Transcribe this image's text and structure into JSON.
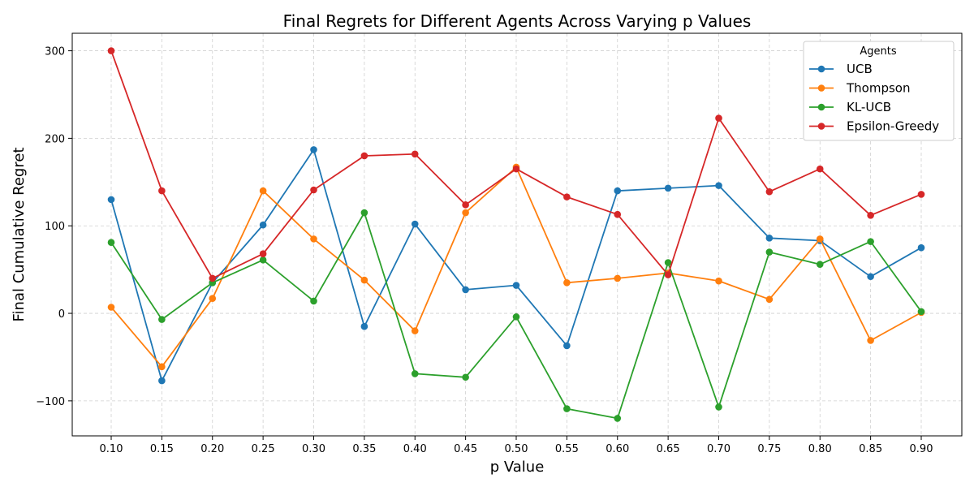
{
  "chart_data": {
    "type": "line",
    "title": "Final Regrets for Different Agents Across Varying p Values",
    "xlabel": "p Value",
    "ylabel": "Final Cumulative Regret",
    "x": [
      "0.10",
      "0.15",
      "0.20",
      "0.25",
      "0.30",
      "0.35",
      "0.40",
      "0.45",
      "0.50",
      "0.55",
      "0.60",
      "0.65",
      "0.70",
      "0.75",
      "0.80",
      "0.85",
      "0.90"
    ],
    "ylim": [
      -140,
      320
    ],
    "yticks": [
      -100,
      0,
      100,
      200,
      300
    ],
    "yticklabels": [
      "−100",
      "0",
      "100",
      "200",
      "300"
    ],
    "grid": true,
    "legend": {
      "title": "Agents",
      "position": "upper right"
    },
    "series": [
      {
        "name": "UCB",
        "color": "#1f77b4",
        "values": [
          130,
          -77,
          35,
          101,
          187,
          -15,
          102,
          27,
          32,
          -37,
          140,
          143,
          146,
          86,
          83,
          42,
          75
        ]
      },
      {
        "name": "Thompson",
        "color": "#ff7f0e",
        "values": [
          7,
          -61,
          17,
          140,
          85,
          38,
          -20,
          115,
          167,
          35,
          40,
          46,
          37,
          16,
          85,
          -31,
          1
        ]
      },
      {
        "name": "KL-UCB",
        "color": "#2ca02c",
        "values": [
          81,
          -7,
          35,
          61,
          14,
          115,
          -69,
          -73,
          -4,
          -109,
          -120,
          58,
          -107,
          70,
          56,
          82,
          2
        ]
      },
      {
        "name": "Epsilon-Greedy",
        "color": "#d62728",
        "values": [
          300,
          140,
          40,
          68,
          141,
          180,
          182,
          124,
          165,
          133,
          113,
          44,
          223,
          139,
          165,
          112,
          136
        ]
      }
    ]
  }
}
